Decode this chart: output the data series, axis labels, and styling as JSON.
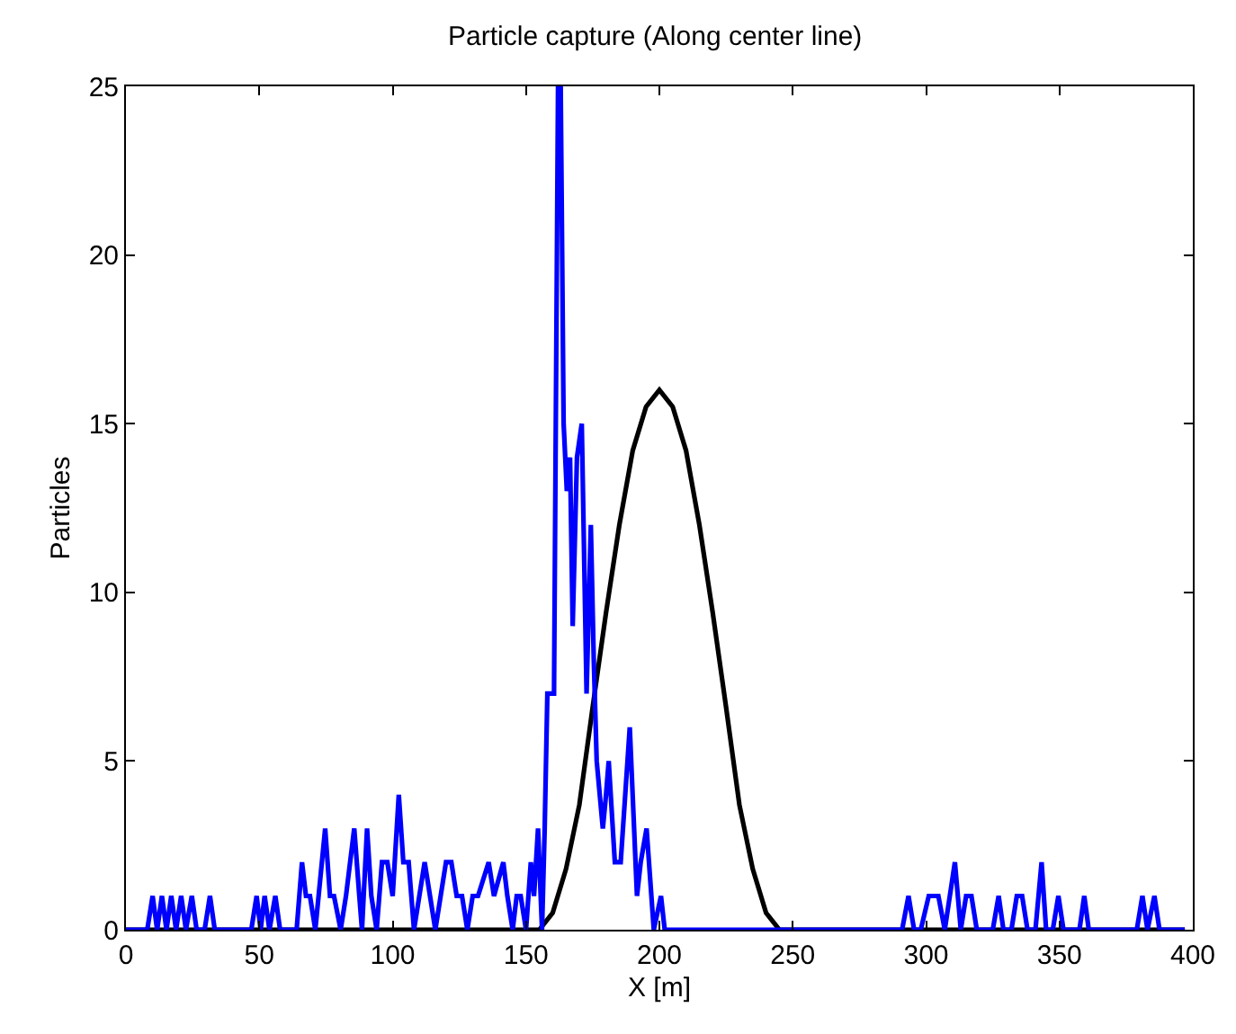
{
  "chart_data": {
    "type": "line",
    "title": "Particle capture (Along center line)",
    "xlabel": "X [m]",
    "ylabel": "Particles",
    "xlim": [
      0,
      400
    ],
    "xticks": [
      0,
      50,
      100,
      150,
      200,
      250,
      300,
      350,
      400
    ],
    "ylim": [
      0,
      25
    ],
    "yticks": [
      0,
      5,
      10,
      15,
      20,
      25
    ],
    "marker": "none",
    "line_style": "solid",
    "series": [
      {
        "color": "#000000",
        "x": [
          0,
          150,
          155,
          160,
          165,
          170,
          175,
          180,
          185,
          190,
          195,
          200,
          205,
          210,
          215,
          220,
          225,
          230,
          235,
          240,
          245,
          397
        ],
        "values": [
          0,
          0,
          0,
          0.5,
          1.8,
          3.7,
          6.6,
          9.4,
          12,
          14.2,
          15.5,
          16,
          15.5,
          14.2,
          12,
          9.4,
          6.6,
          3.7,
          1.8,
          0.5,
          0,
          0
        ]
      },
      {
        "color": "#0000ff",
        "x": [
          0,
          8,
          10,
          11.7,
          13.5,
          15.2,
          17,
          18.8,
          20.7,
          22.5,
          24.7,
          26.5,
          29.5,
          31.5,
          33.3,
          47,
          49,
          50.5,
          52,
          53.8,
          56,
          57.8,
          64,
          66,
          67.5,
          69,
          71,
          74.7,
          76.5,
          78,
          80.5,
          82.5,
          85.6,
          87.5,
          88.5,
          90.4,
          92,
          94,
          96,
          98,
          100,
          102.3,
          104,
          106,
          108,
          112,
          114,
          116,
          120,
          122,
          124,
          126,
          128,
          130,
          132,
          136,
          138,
          141.5,
          143,
          145,
          146.5,
          148,
          150,
          151.8,
          153,
          154.5,
          156,
          157,
          158,
          160.5,
          162,
          163,
          164.1,
          165.3,
          166.5,
          167.5,
          169.1,
          170.9,
          172.7,
          174.3,
          175.4,
          176.5,
          178.8,
          180,
          181,
          183.3,
          185.5,
          188.9,
          191.6,
          193,
          195.2,
          197.9,
          200.6,
          202,
          291,
          293.4,
          295.5,
          298,
          301,
          304.6,
          307,
          310.8,
          313,
          315,
          317,
          319,
          325,
          327.2,
          329,
          332,
          334,
          336,
          338,
          341,
          343.3,
          345,
          347.5,
          349.6,
          351.5,
          357.5,
          359.3,
          361,
          379,
          381.1,
          383,
          385.6,
          387.5,
          397
        ],
        "values": [
          0,
          0,
          1,
          0,
          1,
          0,
          1,
          0,
          1,
          0,
          1,
          0,
          0,
          1,
          0,
          0,
          1,
          0,
          1,
          0,
          1,
          0,
          0,
          2,
          1,
          1,
          0,
          3,
          1,
          1,
          0,
          1,
          3,
          1,
          0,
          3,
          1,
          0,
          2,
          2,
          1,
          4,
          2,
          2,
          0,
          2,
          1,
          0,
          2,
          2,
          1,
          1,
          0,
          1,
          1,
          2,
          1,
          2,
          1,
          0,
          1,
          1,
          0,
          2,
          1,
          3,
          0,
          3,
          7,
          7,
          25,
          25,
          15,
          13,
          14,
          9,
          14,
          15,
          7,
          12,
          8,
          5,
          3,
          4,
          5,
          2,
          2,
          6,
          1,
          2,
          3,
          0,
          1,
          0,
          0,
          1,
          0,
          0,
          1,
          1,
          0,
          2,
          0,
          1,
          1,
          0,
          0,
          1,
          0,
          0,
          1,
          1,
          0,
          0,
          2,
          0,
          0,
          1,
          0,
          0,
          1,
          0,
          0,
          1,
          0,
          1,
          0,
          0
        ]
      }
    ]
  }
}
